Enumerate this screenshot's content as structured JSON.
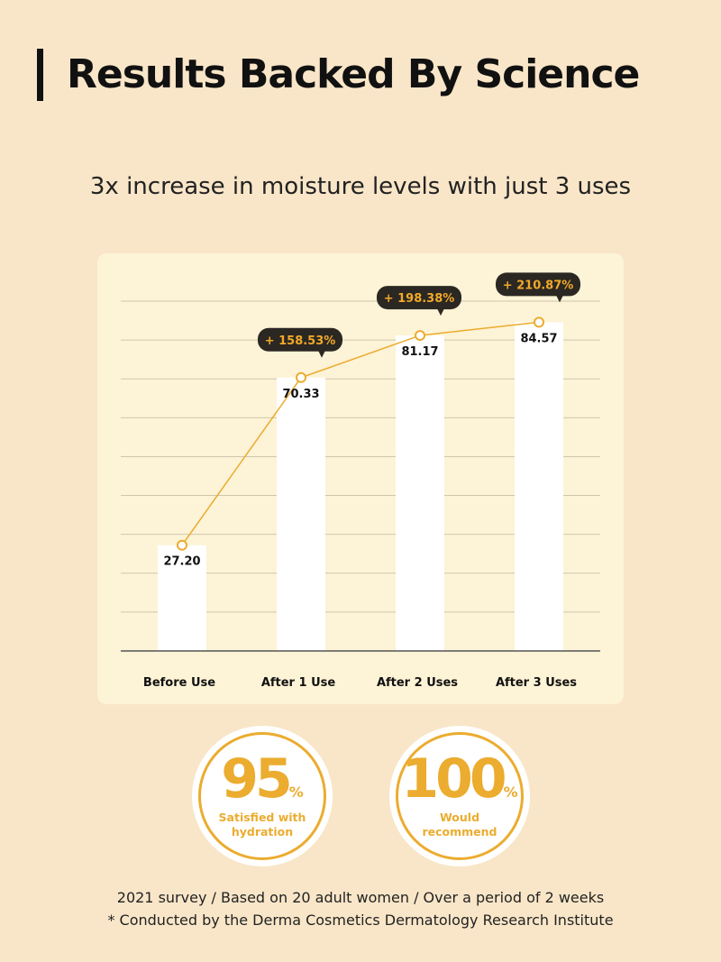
{
  "header": {
    "title": "Results Backed By Science",
    "subtitle": "3x increase in moisture levels with just 3 uses"
  },
  "chart_data": {
    "type": "bar",
    "categories": [
      "Before Use",
      "After 1 Use",
      "After 2 Uses",
      "After 3 Uses"
    ],
    "values": [
      27.2,
      70.33,
      81.17,
      84.57
    ],
    "value_labels": [
      "27.20",
      "70.33",
      "81.17",
      "84.57"
    ],
    "increase_labels": [
      "",
      "+ 158.53%",
      "+ 198.38%",
      "+ 210.87%"
    ],
    "overlay_line": true,
    "ylim": [
      0,
      90
    ],
    "grid": true,
    "colors": {
      "bar": "#ffffff",
      "line": "#ebac2f",
      "callout": "#2b2722",
      "callout_text": "#f2a92a"
    }
  },
  "stats": [
    {
      "value": "95",
      "unit": "%",
      "label_line1": "Satisfied with",
      "label_line2": "hydration"
    },
    {
      "value": "100",
      "unit": "%",
      "label_line1": "Would",
      "label_line2": "recommend"
    }
  ],
  "footer": {
    "line1": "2021 survey / Based on 20 adult women / Over a period of 2 weeks",
    "line2": "* Conducted by the Derma Cosmetics Dermatology Research Institute"
  }
}
